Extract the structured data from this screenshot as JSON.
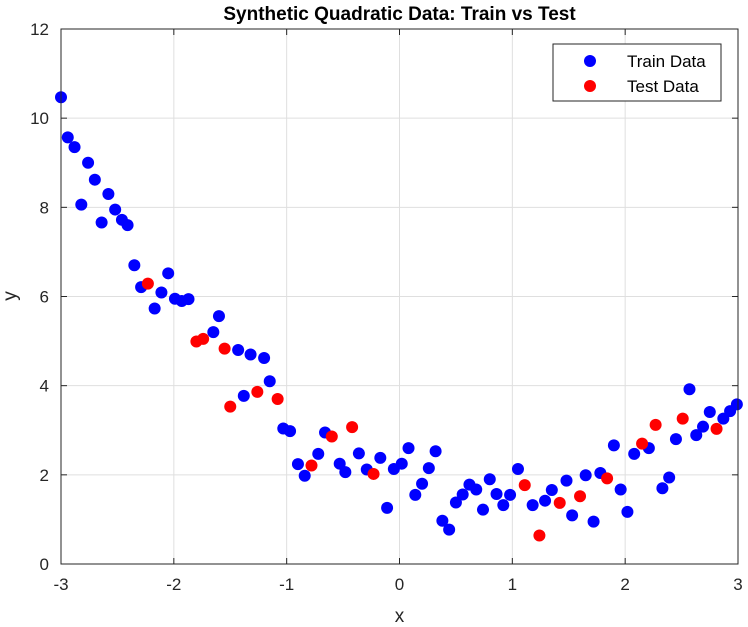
{
  "chart_data": {
    "type": "scatter",
    "title": "Synthetic Quadratic Data: Train vs Test",
    "xlabel": "x",
    "ylabel": "y",
    "xlim": [
      -3,
      3
    ],
    "ylim": [
      0,
      12
    ],
    "xticks": [
      "-3",
      "-2",
      "-1",
      "0",
      "1",
      "2",
      "3"
    ],
    "yticks": [
      "0",
      "2",
      "4",
      "6",
      "8",
      "10",
      "12"
    ],
    "grid": true,
    "legend_position": "top-right",
    "series": [
      {
        "name": "Train Data",
        "color": "#0000ff",
        "points": [
          [
            -3.0,
            10.47
          ],
          [
            -2.94,
            9.57
          ],
          [
            -2.88,
            9.35
          ],
          [
            -2.82,
            8.06
          ],
          [
            -2.76,
            9.0
          ],
          [
            -2.7,
            8.62
          ],
          [
            -2.64,
            7.66
          ],
          [
            -2.58,
            8.3
          ],
          [
            -2.52,
            7.95
          ],
          [
            -2.46,
            7.72
          ],
          [
            -2.41,
            7.6
          ],
          [
            -2.35,
            6.7
          ],
          [
            -2.29,
            6.21
          ],
          [
            -2.17,
            5.73
          ],
          [
            -2.11,
            6.09
          ],
          [
            -2.05,
            6.52
          ],
          [
            -1.99,
            5.95
          ],
          [
            -1.93,
            5.9
          ],
          [
            -1.87,
            5.94
          ],
          [
            -1.65,
            5.2
          ],
          [
            -1.6,
            5.56
          ],
          [
            -1.43,
            4.8
          ],
          [
            -1.38,
            3.77
          ],
          [
            -1.32,
            4.7
          ],
          [
            -1.2,
            4.62
          ],
          [
            -1.15,
            4.1
          ],
          [
            -1.03,
            3.04
          ],
          [
            -0.97,
            2.98
          ],
          [
            -0.9,
            2.24
          ],
          [
            -0.84,
            1.98
          ],
          [
            -0.72,
            2.47
          ],
          [
            -0.66,
            2.95
          ],
          [
            -0.53,
            2.25
          ],
          [
            -0.48,
            2.06
          ],
          [
            -0.36,
            2.48
          ],
          [
            -0.29,
            2.12
          ],
          [
            -0.17,
            2.38
          ],
          [
            -0.11,
            1.26
          ],
          [
            -0.05,
            2.13
          ],
          [
            0.02,
            2.25
          ],
          [
            0.08,
            2.6
          ],
          [
            0.14,
            1.55
          ],
          [
            0.2,
            1.8
          ],
          [
            0.26,
            2.15
          ],
          [
            0.32,
            2.53
          ],
          [
            0.38,
            0.97
          ],
          [
            0.44,
            0.77
          ],
          [
            0.5,
            1.38
          ],
          [
            0.56,
            1.56
          ],
          [
            0.62,
            1.78
          ],
          [
            0.68,
            1.67
          ],
          [
            0.74,
            1.22
          ],
          [
            0.8,
            1.9
          ],
          [
            0.86,
            1.57
          ],
          [
            0.92,
            1.32
          ],
          [
            0.98,
            1.55
          ],
          [
            1.05,
            2.13
          ],
          [
            1.18,
            1.32
          ],
          [
            1.29,
            1.42
          ],
          [
            1.35,
            1.66
          ],
          [
            1.48,
            1.87
          ],
          [
            1.53,
            1.09
          ],
          [
            1.65,
            1.99
          ],
          [
            1.72,
            0.95
          ],
          [
            1.78,
            2.04
          ],
          [
            1.9,
            2.66
          ],
          [
            1.96,
            1.67
          ],
          [
            2.02,
            1.17
          ],
          [
            2.08,
            2.47
          ],
          [
            2.21,
            2.6
          ],
          [
            2.33,
            1.7
          ],
          [
            2.39,
            1.94
          ],
          [
            2.45,
            2.8
          ],
          [
            2.57,
            3.92
          ],
          [
            2.63,
            2.89
          ],
          [
            2.69,
            3.08
          ],
          [
            2.75,
            3.41
          ],
          [
            2.87,
            3.26
          ],
          [
            2.93,
            3.43
          ],
          [
            2.99,
            3.58
          ]
        ]
      },
      {
        "name": "Test Data",
        "color": "#ff0000",
        "points": [
          [
            -2.23,
            6.29
          ],
          [
            -1.8,
            4.99
          ],
          [
            -1.74,
            5.05
          ],
          [
            -1.55,
            4.83
          ],
          [
            -1.5,
            3.53
          ],
          [
            -1.26,
            3.86
          ],
          [
            -1.08,
            3.7
          ],
          [
            -0.78,
            2.21
          ],
          [
            -0.6,
            2.86
          ],
          [
            -0.42,
            3.07
          ],
          [
            -0.23,
            2.02
          ],
          [
            1.11,
            1.77
          ],
          [
            1.24,
            0.64
          ],
          [
            1.42,
            1.37
          ],
          [
            1.6,
            1.52
          ],
          [
            1.84,
            1.92
          ],
          [
            2.15,
            2.7
          ],
          [
            2.27,
            3.12
          ],
          [
            2.51,
            3.26
          ],
          [
            2.81,
            3.03
          ]
        ]
      }
    ]
  }
}
